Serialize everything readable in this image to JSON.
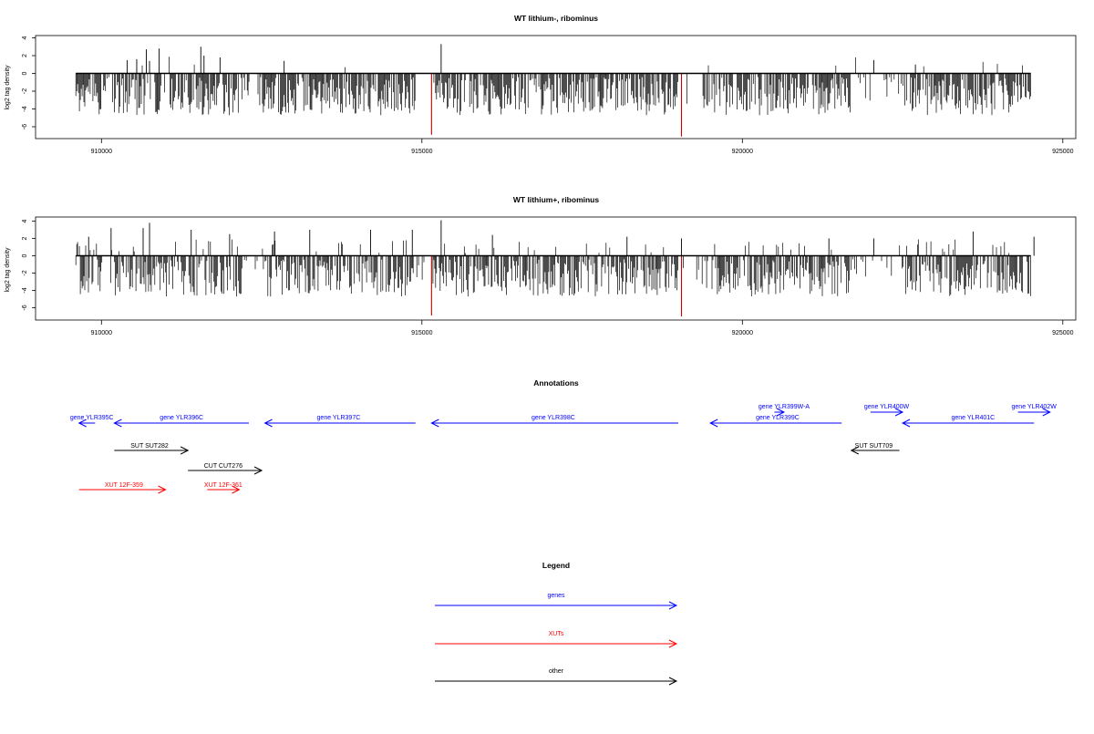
{
  "chart_data": [
    {
      "type": "bar",
      "title": "WT lithium-, ribominus",
      "ylabel": "log2 tag density",
      "xlim": [
        909000,
        925000
      ],
      "ylim": [
        -7.5,
        4.5
      ],
      "yticks": [
        4,
        2,
        0,
        -2,
        -4,
        -6
      ],
      "xticks": [
        910000,
        915000,
        920000,
        925000
      ],
      "xtick_labels": [
        "910000",
        "915000",
        "920000",
        "925000"
      ],
      "data_range": [
        909600,
        924500
      ],
      "tall_up_spikes": [
        {
          "x": 910400,
          "y": 1.5
        },
        {
          "x": 910550,
          "y": 1.6
        },
        {
          "x": 910700,
          "y": 2.7
        },
        {
          "x": 910750,
          "y": 1.4
        },
        {
          "x": 910900,
          "y": 2.8
        },
        {
          "x": 911550,
          "y": 3.0
        },
        {
          "x": 911600,
          "y": 2.0
        },
        {
          "x": 911850,
          "y": 1.8
        },
        {
          "x": 912850,
          "y": 1.4
        },
        {
          "x": 915300,
          "y": 3.3
        },
        {
          "x": 922050,
          "y": 1.5
        },
        {
          "x": 922700,
          "y": 1.0
        }
      ],
      "red_spikes": [
        {
          "x": 915150,
          "y": -6.9
        },
        {
          "x": 919050,
          "y": -7.1
        }
      ]
    },
    {
      "type": "bar",
      "title": "WT lithium+, ribominus",
      "ylabel": "log2 tag density",
      "xlim": [
        909000,
        925000
      ],
      "ylim": [
        -7.5,
        4.5
      ],
      "yticks": [
        4,
        2,
        0,
        -2,
        -4,
        -6
      ],
      "xticks": [
        910000,
        915000,
        920000,
        925000
      ],
      "xtick_labels": [
        "910000",
        "915000",
        "920000",
        "925000"
      ],
      "data_range": [
        909600,
        924500
      ],
      "tall_up_spikes": [
        {
          "x": 909800,
          "y": 2.2
        },
        {
          "x": 910150,
          "y": 3.2
        },
        {
          "x": 910650,
          "y": 3.2
        },
        {
          "x": 910750,
          "y": 3.8
        },
        {
          "x": 911400,
          "y": 3.0
        },
        {
          "x": 912000,
          "y": 2.5
        },
        {
          "x": 912700,
          "y": 2.8
        },
        {
          "x": 913250,
          "y": 3.0
        },
        {
          "x": 914200,
          "y": 3.0
        },
        {
          "x": 914850,
          "y": 3.0
        },
        {
          "x": 915300,
          "y": 4.1
        },
        {
          "x": 916100,
          "y": 2.4
        },
        {
          "x": 918200,
          "y": 2.2
        },
        {
          "x": 919050,
          "y": 2.0
        },
        {
          "x": 921350,
          "y": 2.0
        },
        {
          "x": 922050,
          "y": 2.0
        },
        {
          "x": 923600,
          "y": 2.8
        },
        {
          "x": 924550,
          "y": 2.2
        }
      ],
      "red_spikes": [
        {
          "x": 915150,
          "y": -6.9
        },
        {
          "x": 919050,
          "y": -7.0
        }
      ]
    }
  ],
  "annotations": {
    "title": "Annotations",
    "items": [
      {
        "label": "gene YLR395C",
        "kind": "gene",
        "strand": "-",
        "start": 909650,
        "end": 909900,
        "row": 1,
        "label_x": 909850
      },
      {
        "label": "gene YLR396C",
        "kind": "gene",
        "strand": "-",
        "start": 910200,
        "end": 912300,
        "row": 1,
        "label_x": 911250
      },
      {
        "label": "gene YLR397C",
        "kind": "gene",
        "strand": "-",
        "start": 912550,
        "end": 914900,
        "row": 1,
        "label_x": 913700
      },
      {
        "label": "gene YLR398C",
        "kind": "gene",
        "strand": "-",
        "start": 915150,
        "end": 919000,
        "row": 1,
        "label_x": 917050
      },
      {
        "label": "gene YLR399C",
        "kind": "gene",
        "strand": "-",
        "start": 919500,
        "end": 921550,
        "row": 1,
        "label_x": 920550
      },
      {
        "label": "gene YLR399W-A",
        "kind": "gene",
        "strand": "+",
        "start": 920500,
        "end": 920650,
        "row": 0,
        "label_x": 920650
      },
      {
        "label": "gene YLR400W",
        "kind": "gene",
        "strand": "+",
        "start": 922000,
        "end": 922500,
        "row": 0,
        "label_x": 922250
      },
      {
        "label": "gene YLR401C",
        "kind": "gene",
        "strand": "-",
        "start": 922500,
        "end": 924550,
        "row": 1,
        "label_x": 923600
      },
      {
        "label": "gene YLR402W",
        "kind": "gene",
        "strand": "+",
        "start": 924300,
        "end": 924800,
        "row": 0,
        "label_x": 924550
      },
      {
        "label": "SUT SUT282",
        "kind": "other",
        "strand": "+",
        "start": 910200,
        "end": 911350,
        "row": 2,
        "label_x": 910750
      },
      {
        "label": "SUT SUT709",
        "kind": "other",
        "strand": "-",
        "start": 921700,
        "end": 922450,
        "row": 2,
        "label_x": 922050
      },
      {
        "label": "CUT CUT276",
        "kind": "other",
        "strand": "+",
        "start": 911350,
        "end": 912500,
        "row": 3,
        "label_x": 911900
      },
      {
        "label": "XUT 12F-359",
        "kind": "xut",
        "strand": "+",
        "start": 909650,
        "end": 911000,
        "row": 4,
        "label_x": 910350
      },
      {
        "label": "XUT 12F-361",
        "kind": "xut",
        "strand": "+",
        "start": 911650,
        "end": 912150,
        "row": 4,
        "label_x": 911900
      }
    ]
  },
  "legend": {
    "title": "Legend",
    "items": [
      {
        "label": "genes",
        "kind": "gene"
      },
      {
        "label": "XUTs",
        "kind": "xut"
      },
      {
        "label": "other",
        "kind": "other"
      }
    ]
  },
  "colors": {
    "gene": "#0000ff",
    "xut": "#ff0000",
    "other": "#000000",
    "bars": "#000000",
    "red_spike": "#cc0000"
  }
}
